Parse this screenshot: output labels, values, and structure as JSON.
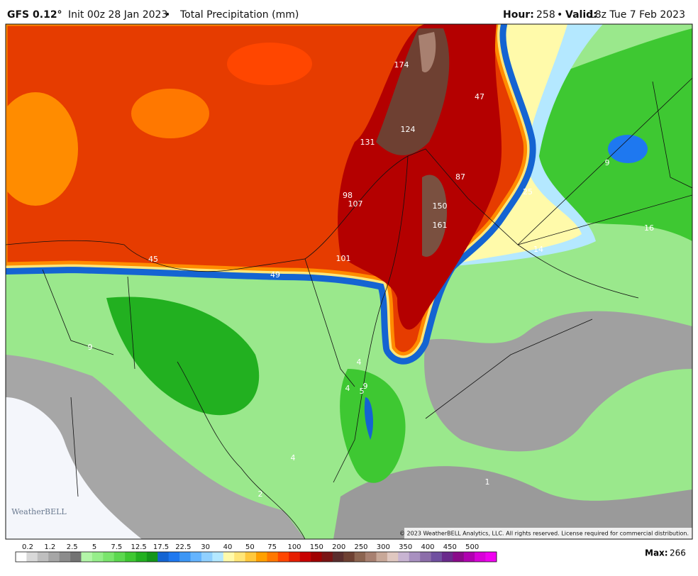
{
  "header": {
    "model": "GFS 0.12°",
    "init": "Init 00z 28 Jan 2023",
    "separator": "•",
    "product": "Total Precipitation (mm)",
    "hour_label": "Hour:",
    "hour": "258",
    "valid_label": "Valid:",
    "valid": "18z Tue 7 Feb 2023"
  },
  "map_labels": [
    "174",
    "124",
    "131",
    "47",
    "87",
    "25",
    "9",
    "98",
    "107",
    "150",
    "161",
    "16",
    "14",
    "45",
    "101",
    "49",
    "9",
    "4",
    "4",
    "9",
    "5",
    "4",
    "2",
    "1"
  ],
  "logo": "WeatherBELL",
  "copyright": "© 2023 WeatherBELL Analytics, LLC. All rights reserved. License required for commercial distribution.",
  "legend": {
    "ticks": [
      "0.2",
      "1.2",
      "2.5",
      "5",
      "7.5",
      "12.5",
      "17.5",
      "22.5",
      "30",
      "40",
      "50",
      "75",
      "100",
      "150",
      "200",
      "250",
      "300",
      "350",
      "400",
      "450",
      "500"
    ],
    "colors": [
      "#ffffff",
      "#d9d9d9",
      "#bfbfbf",
      "#a6a6a6",
      "#8c8c8c",
      "#737373",
      "#b3f5a8",
      "#96ee8a",
      "#7ae56c",
      "#5cd84f",
      "#3ec832",
      "#22b020",
      "#14961a",
      "#1464d2",
      "#1e78f0",
      "#3c96f5",
      "#64b4ff",
      "#90d0ff",
      "#b4e8ff",
      "#fffaaa",
      "#ffe678",
      "#ffc83c",
      "#ffa000",
      "#ff7800",
      "#ff4600",
      "#e61e00",
      "#c80000",
      "#a00000",
      "#7a1414",
      "#5a2d2d",
      "#6e4032",
      "#8c6450",
      "#a88070",
      "#c8a898",
      "#e0c8c0",
      "#c8b4d2",
      "#a890c0",
      "#8c6eaa",
      "#7050a0",
      "#6a2a8c",
      "#8a0a8a",
      "#b000b0",
      "#d800d8",
      "#f000f0"
    ]
  },
  "max": {
    "label": "Max:",
    "value": "266"
  }
}
